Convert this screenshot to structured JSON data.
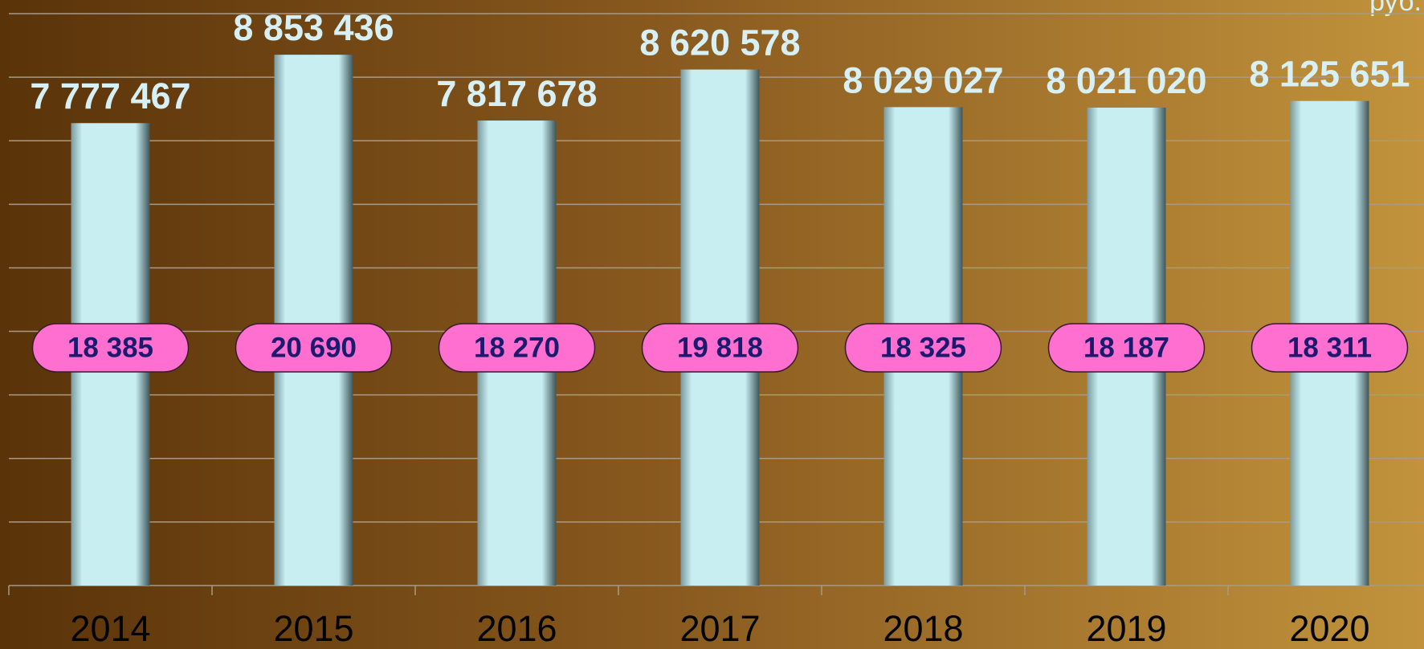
{
  "chart_data": {
    "type": "bar",
    "annotation": "руб.",
    "categories": [
      "2014",
      "2015",
      "2016",
      "2017",
      "2018",
      "2019",
      "2020"
    ],
    "series": [
      {
        "values": [
          7777467,
          8853436,
          7817678,
          8620578,
          8029027,
          8021020,
          8125651
        ],
        "value_labels": [
          "7 777 467",
          "8 853 436",
          "7 817 678",
          "8 620 578",
          "8 029 027",
          "8 021 020",
          "8 125 651"
        ],
        "color": "#c8eef2"
      },
      {
        "values": [
          18385,
          20690,
          18270,
          19818,
          18325,
          18187,
          18311
        ],
        "value_labels": [
          "18 385",
          "20 690",
          "18 270",
          "19 818",
          "18 325",
          "18 187",
          "18 311"
        ],
        "color": "#ff6fd0"
      }
    ],
    "ylim": [
      500000,
      9500000
    ],
    "yticks": [
      500000,
      1500000,
      2500000,
      3500000,
      4500000,
      5500000,
      6500000,
      7500000,
      8500000,
      9500000
    ],
    "grid": true
  }
}
